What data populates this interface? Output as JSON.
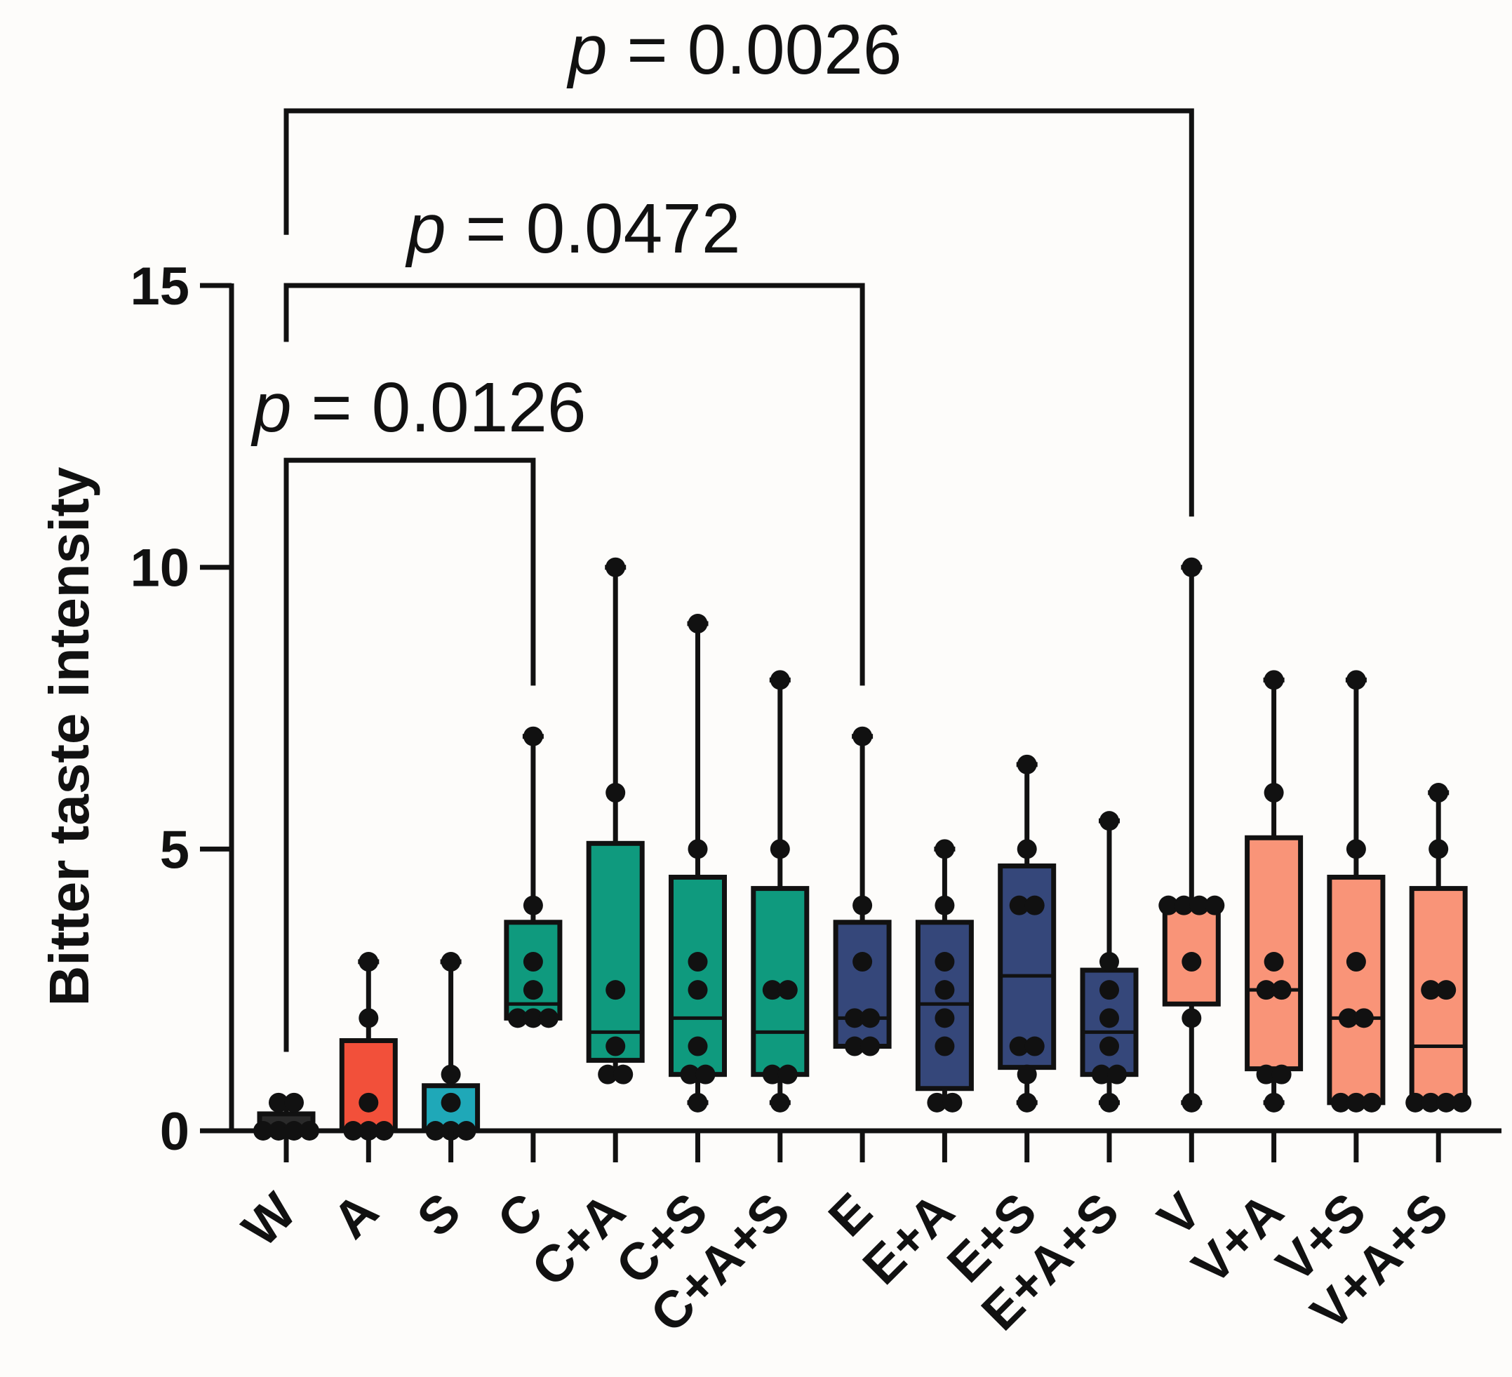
{
  "chart_data": {
    "type": "box",
    "ylabel": "Bitter taste intensity",
    "ylim": [
      0,
      15
    ],
    "yticks": [
      "0",
      "5",
      "10",
      "15"
    ],
    "groups": [
      {
        "label": "W",
        "color": "#2a2a2a",
        "min": 0,
        "q1": 0,
        "median": 0,
        "q3": 0.3,
        "max": 0.5,
        "points": [
          0,
          0,
          0,
          0,
          0.5,
          0.5
        ]
      },
      {
        "label": "A",
        "color": "#f2503a",
        "min": 0,
        "q1": 0,
        "median": 0,
        "q3": 1.6,
        "max": 3,
        "points": [
          0,
          0,
          0,
          0.5,
          2,
          3
        ]
      },
      {
        "label": "S",
        "color": "#1fa8b8",
        "min": 0,
        "q1": 0,
        "median": 0,
        "q3": 0.8,
        "max": 3,
        "points": [
          0,
          0,
          0,
          0.5,
          1,
          3
        ]
      },
      {
        "label": "C",
        "color": "#0f9a7e",
        "min": 2,
        "q1": 2,
        "median": 2.25,
        "q3": 3.7,
        "max": 7,
        "points": [
          2,
          2,
          2,
          2.5,
          3,
          4,
          7
        ]
      },
      {
        "label": "C+A",
        "color": "#0f9a7e",
        "min": 1,
        "q1": 1.25,
        "median": 1.75,
        "q3": 5.1,
        "max": 10,
        "points": [
          1,
          1,
          1.5,
          2.5,
          6,
          10
        ]
      },
      {
        "label": "C+S",
        "color": "#0f9a7e",
        "min": 0.5,
        "q1": 1,
        "median": 2,
        "q3": 4.5,
        "max": 9,
        "points": [
          0.5,
          1,
          1,
          1.5,
          2.5,
          3,
          5,
          9
        ]
      },
      {
        "label": "C+A+S",
        "color": "#0f9a7e",
        "min": 0.5,
        "q1": 1,
        "median": 1.75,
        "q3": 4.3,
        "max": 8,
        "points": [
          0.5,
          1,
          1,
          2.5,
          2.5,
          5,
          8
        ]
      },
      {
        "label": "E",
        "color": "#35477a",
        "min": 1.5,
        "q1": 1.5,
        "median": 2,
        "q3": 3.7,
        "max": 7,
        "points": [
          1.5,
          1.5,
          2,
          2,
          3,
          4,
          7
        ]
      },
      {
        "label": "E+A",
        "color": "#35477a",
        "min": 0.5,
        "q1": 0.75,
        "median": 2.25,
        "q3": 3.7,
        "max": 5,
        "points": [
          0.5,
          0.5,
          1.5,
          2,
          2.5,
          3,
          4,
          5
        ]
      },
      {
        "label": "E+S",
        "color": "#35477a",
        "min": 0.5,
        "q1": 1.125,
        "median": 2.75,
        "q3": 4.7,
        "max": 6.5,
        "points": [
          0.5,
          1,
          1.5,
          1.5,
          4,
          4,
          5,
          6.5
        ]
      },
      {
        "label": "E+A+S",
        "color": "#35477a",
        "min": 0.5,
        "q1": 1,
        "median": 1.75,
        "q3": 2.85,
        "max": 5.5,
        "points": [
          0.5,
          1,
          1,
          1.5,
          2,
          2.5,
          3,
          5.5
        ]
      },
      {
        "label": "V",
        "color": "#f99478",
        "min": 0.5,
        "q1": 2.25,
        "median": 4,
        "q3": 4,
        "max": 10,
        "points": [
          0.5,
          2,
          3,
          4,
          4,
          4,
          4,
          10
        ]
      },
      {
        "label": "V+A",
        "color": "#f99478",
        "min": 0.5,
        "q1": 1.1,
        "median": 2.5,
        "q3": 5.2,
        "max": 8,
        "points": [
          0.5,
          1,
          1,
          2.5,
          2.5,
          3,
          6,
          8
        ]
      },
      {
        "label": "V+S",
        "color": "#f99478",
        "min": 0.5,
        "q1": 0.5,
        "median": 2,
        "q3": 4.5,
        "max": 8,
        "points": [
          0.5,
          0.5,
          0.5,
          2,
          2,
          3,
          5,
          8
        ]
      },
      {
        "label": "V+A+S",
        "color": "#f99478",
        "min": 0.5,
        "q1": 0.5,
        "median": 1.5,
        "q3": 4.3,
        "max": 6,
        "points": [
          0.5,
          0.5,
          0.5,
          0.5,
          2.5,
          2.5,
          5,
          6
        ]
      }
    ],
    "comparisons": [
      {
        "from": "W",
        "to": "C",
        "p_label": "p",
        "p_value": " = 0.0126",
        "from_y": 1.4,
        "bar_y": 11.9,
        "to_y": 7.9
      },
      {
        "from": "W",
        "to": "E",
        "p_label": "p",
        "p_value": " = 0.0472",
        "from_y": 14,
        "bar_y": 15,
        "to_y": 7.9
      },
      {
        "from": "W",
        "to": "V",
        "p_label": "p",
        "p_value": " = 0.0026",
        "from_y": 15.9,
        "bar_y": 18.1,
        "to_y": 10.9
      }
    ]
  }
}
